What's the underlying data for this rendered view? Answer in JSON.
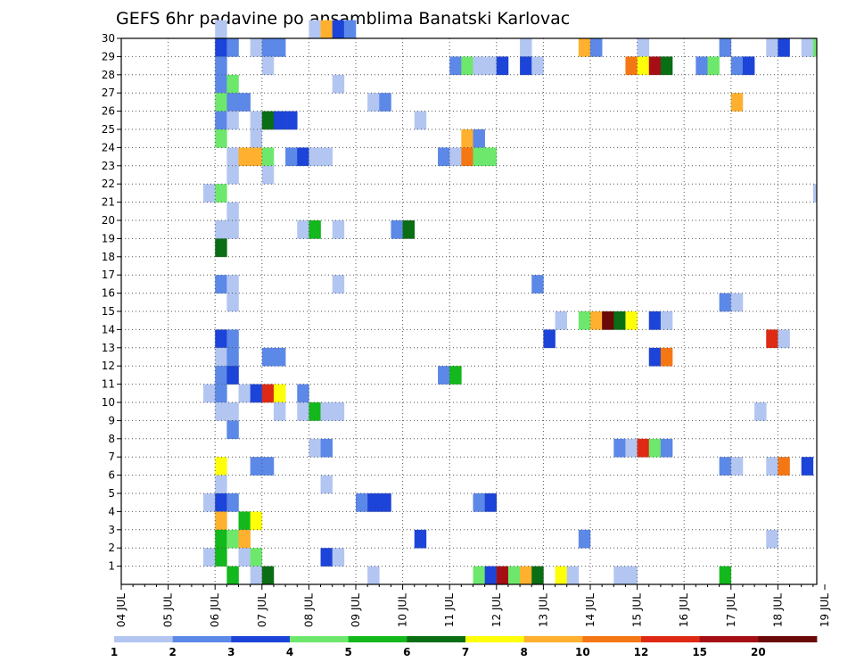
{
  "chart_data": {
    "type": "heatmap",
    "title": "GEFS 6hr padavine po ansamblima Banatski Karlovac",
    "x_tick_labels": [
      "04 JUL",
      "05 JUL",
      "06 JUL",
      "07 JUL",
      "08 JUL",
      "09 JUL",
      "10 JUL",
      "11 JUL",
      "12 JUL",
      "13 JUL",
      "14 JUL",
      "15 JUL",
      "16 JUL",
      "17 JUL",
      "18 JUL",
      "19 JUL"
    ],
    "y_tick_labels": [
      "1",
      "2",
      "3",
      "4",
      "5",
      "6",
      "7",
      "8",
      "9",
      "10",
      "11",
      "12",
      "13",
      "14",
      "15",
      "16",
      "17",
      "18",
      "19",
      "20",
      "21",
      "22",
      "23",
      "24",
      "25",
      "26",
      "27",
      "28",
      "29",
      "30"
    ],
    "x_slots_per_day": 4,
    "y_rows": [
      0,
      30
    ],
    "grid": true,
    "legend": {
      "position": "bottom",
      "labels": [
        "1",
        "2",
        "3",
        "4",
        "5",
        "6",
        "7",
        "8",
        "10",
        "12",
        "15",
        "20"
      ],
      "colors": [
        "#b3c6f2",
        "#5c88e8",
        "#1d44d8",
        "#6de86d",
        "#13b81c",
        "#0a6e14",
        "#ffff0a",
        "#ffb02e",
        "#f57714",
        "#de2a14",
        "#a50e14",
        "#6b0808"
      ]
    },
    "cells": [
      {
        "m": 30,
        "t": "06 JUL 00",
        "v": 1
      },
      {
        "m": 30,
        "t": "08 JUL 00",
        "v": 1
      },
      {
        "m": 30,
        "t": "08 JUL 06",
        "v": 8
      },
      {
        "m": 30,
        "t": "08 JUL 12",
        "v": 3
      },
      {
        "m": 30,
        "t": "08 JUL 18",
        "v": 2
      },
      {
        "m": 29,
        "t": "06 JUL 00",
        "v": 3
      },
      {
        "m": 29,
        "t": "06 JUL 06",
        "v": 2
      },
      {
        "m": 29,
        "t": "06 JUL 18",
        "v": 1
      },
      {
        "m": 29,
        "t": "07 JUL 00",
        "v": 2
      },
      {
        "m": 29,
        "t": "07 JUL 06",
        "v": 2
      },
      {
        "m": 29,
        "t": "12 JUL 12",
        "v": 1
      },
      {
        "m": 29,
        "t": "13 JUL 18",
        "v": 8
      },
      {
        "m": 29,
        "t": "14 JUL 00",
        "v": 2
      },
      {
        "m": 29,
        "t": "15 JUL 00",
        "v": 1
      },
      {
        "m": 29,
        "t": "16 JUL 18",
        "v": 2
      },
      {
        "m": 29,
        "t": "17 JUL 18",
        "v": 1
      },
      {
        "m": 29,
        "t": "18 JUL 00",
        "v": 3
      },
      {
        "m": 29,
        "t": "18 JUL 12",
        "v": 1
      },
      {
        "m": 29,
        "t": "18 JUL 18",
        "v": 4
      },
      {
        "m": 29,
        "t": "19 JUL 00",
        "v": 1
      },
      {
        "m": 28,
        "t": "06 JUL 00",
        "v": 2
      },
      {
        "m": 28,
        "t": "07 JUL 00",
        "v": 1
      },
      {
        "m": 28,
        "t": "11 JUL 00",
        "v": 2
      },
      {
        "m": 28,
        "t": "11 JUL 06",
        "v": 4
      },
      {
        "m": 28,
        "t": "11 JUL 12",
        "v": 1
      },
      {
        "m": 28,
        "t": "11 JUL 18",
        "v": 1
      },
      {
        "m": 28,
        "t": "12 JUL 00",
        "v": 3
      },
      {
        "m": 28,
        "t": "12 JUL 12",
        "v": 3
      },
      {
        "m": 28,
        "t": "12 JUL 18",
        "v": 1
      },
      {
        "m": 28,
        "t": "14 JUL 18",
        "v": 10
      },
      {
        "m": 28,
        "t": "15 JUL 00",
        "v": 7
      },
      {
        "m": 28,
        "t": "15 JUL 06",
        "v": 15
      },
      {
        "m": 28,
        "t": "15 JUL 12",
        "v": 6
      },
      {
        "m": 28,
        "t": "16 JUL 06",
        "v": 2
      },
      {
        "m": 28,
        "t": "16 JUL 12",
        "v": 4
      },
      {
        "m": 28,
        "t": "17 JUL 00",
        "v": 2
      },
      {
        "m": 28,
        "t": "17 JUL 06",
        "v": 3
      },
      {
        "m": 27,
        "t": "06 JUL 00",
        "v": 2
      },
      {
        "m": 27,
        "t": "06 JUL 06",
        "v": 4
      },
      {
        "m": 27,
        "t": "08 JUL 12",
        "v": 1
      },
      {
        "m": 26,
        "t": "06 JUL 00",
        "v": 4
      },
      {
        "m": 26,
        "t": "06 JUL 06",
        "v": 2
      },
      {
        "m": 26,
        "t": "06 JUL 12",
        "v": 2
      },
      {
        "m": 26,
        "t": "09 JUL 06",
        "v": 1
      },
      {
        "m": 26,
        "t": "09 JUL 12",
        "v": 2
      },
      {
        "m": 26,
        "t": "17 JUL 00",
        "v": 8
      },
      {
        "m": 25,
        "t": "06 JUL 00",
        "v": 2
      },
      {
        "m": 25,
        "t": "06 JUL 06",
        "v": 1
      },
      {
        "m": 25,
        "t": "06 JUL 18",
        "v": 1
      },
      {
        "m": 25,
        "t": "07 JUL 00",
        "v": 6
      },
      {
        "m": 25,
        "t": "07 JUL 06",
        "v": 3
      },
      {
        "m": 25,
        "t": "07 JUL 12",
        "v": 3
      },
      {
        "m": 25,
        "t": "10 JUL 06",
        "v": 1
      },
      {
        "m": 24,
        "t": "06 JUL 00",
        "v": 4
      },
      {
        "m": 24,
        "t": "06 JUL 18",
        "v": 1
      },
      {
        "m": 24,
        "t": "11 JUL 06",
        "v": 8
      },
      {
        "m": 24,
        "t": "11 JUL 12",
        "v": 2
      },
      {
        "m": 23,
        "t": "06 JUL 06",
        "v": 1
      },
      {
        "m": 23,
        "t": "06 JUL 12",
        "v": 8
      },
      {
        "m": 23,
        "t": "06 JUL 18",
        "v": 8
      },
      {
        "m": 23,
        "t": "07 JUL 00",
        "v": 4
      },
      {
        "m": 23,
        "t": "07 JUL 12",
        "v": 2
      },
      {
        "m": 23,
        "t": "07 JUL 18",
        "v": 3
      },
      {
        "m": 23,
        "t": "08 JUL 00",
        "v": 1
      },
      {
        "m": 23,
        "t": "08 JUL 06",
        "v": 1
      },
      {
        "m": 23,
        "t": "10 JUL 18",
        "v": 2
      },
      {
        "m": 23,
        "t": "11 JUL 00",
        "v": 1
      },
      {
        "m": 23,
        "t": "11 JUL 06",
        "v": 10
      },
      {
        "m": 23,
        "t": "11 JUL 12",
        "v": 4
      },
      {
        "m": 23,
        "t": "11 JUL 18",
        "v": 4
      },
      {
        "m": 22,
        "t": "06 JUL 06",
        "v": 1
      },
      {
        "m": 22,
        "t": "07 JUL 00",
        "v": 1
      },
      {
        "m": 21,
        "t": "05 JUL 18",
        "v": 1
      },
      {
        "m": 21,
        "t": "06 JUL 00",
        "v": 4
      },
      {
        "m": 21,
        "t": "18 JUL 18",
        "v": 1
      },
      {
        "m": 21,
        "t": "19 JUL 00",
        "v": 4
      },
      {
        "m": 20,
        "t": "06 JUL 06",
        "v": 1
      },
      {
        "m": 19,
        "t": "06 JUL 00",
        "v": 1
      },
      {
        "m": 19,
        "t": "06 JUL 06",
        "v": 1
      },
      {
        "m": 19,
        "t": "07 JUL 18",
        "v": 1
      },
      {
        "m": 19,
        "t": "08 JUL 00",
        "v": 5
      },
      {
        "m": 19,
        "t": "08 JUL 12",
        "v": 1
      },
      {
        "m": 19,
        "t": "09 JUL 18",
        "v": 2
      },
      {
        "m": 19,
        "t": "10 JUL 00",
        "v": 6
      },
      {
        "m": 18,
        "t": "06 JUL 00",
        "v": 6
      },
      {
        "m": 16,
        "t": "06 JUL 00",
        "v": 2
      },
      {
        "m": 16,
        "t": "06 JUL 06",
        "v": 1
      },
      {
        "m": 16,
        "t": "08 JUL 12",
        "v": 1
      },
      {
        "m": 16,
        "t": "12 JUL 18",
        "v": 2
      },
      {
        "m": 15,
        "t": "06 JUL 06",
        "v": 1
      },
      {
        "m": 15,
        "t": "16 JUL 18",
        "v": 2
      },
      {
        "m": 15,
        "t": "17 JUL 00",
        "v": 1
      },
      {
        "m": 14,
        "t": "13 JUL 06",
        "v": 1
      },
      {
        "m": 14,
        "t": "13 JUL 18",
        "v": 4
      },
      {
        "m": 14,
        "t": "14 JUL 00",
        "v": 8
      },
      {
        "m": 14,
        "t": "14 JUL 06",
        "v": 20
      },
      {
        "m": 14,
        "t": "14 JUL 12",
        "v": 6
      },
      {
        "m": 14,
        "t": "14 JUL 18",
        "v": 7
      },
      {
        "m": 14,
        "t": "15 JUL 06",
        "v": 3
      },
      {
        "m": 14,
        "t": "15 JUL 12",
        "v": 1
      },
      {
        "m": 13,
        "t": "06 JUL 00",
        "v": 3
      },
      {
        "m": 13,
        "t": "06 JUL 06",
        "v": 2
      },
      {
        "m": 13,
        "t": "13 JUL 00",
        "v": 3
      },
      {
        "m": 13,
        "t": "17 JUL 18",
        "v": 12
      },
      {
        "m": 13,
        "t": "18 JUL 00",
        "v": 1
      },
      {
        "m": 12,
        "t": "06 JUL 00",
        "v": 1
      },
      {
        "m": 12,
        "t": "06 JUL 06",
        "v": 2
      },
      {
        "m": 12,
        "t": "07 JUL 00",
        "v": 2
      },
      {
        "m": 12,
        "t": "07 JUL 06",
        "v": 2
      },
      {
        "m": 12,
        "t": "15 JUL 06",
        "v": 3
      },
      {
        "m": 12,
        "t": "15 JUL 12",
        "v": 10
      },
      {
        "m": 11,
        "t": "06 JUL 00",
        "v": 2
      },
      {
        "m": 11,
        "t": "06 JUL 06",
        "v": 3
      },
      {
        "m": 11,
        "t": "10 JUL 18",
        "v": 2
      },
      {
        "m": 11,
        "t": "11 JUL 00",
        "v": 5
      },
      {
        "m": 10,
        "t": "05 JUL 18",
        "v": 1
      },
      {
        "m": 10,
        "t": "06 JUL 00",
        "v": 2
      },
      {
        "m": 10,
        "t": "06 JUL 12",
        "v": 1
      },
      {
        "m": 10,
        "t": "06 JUL 18",
        "v": 3
      },
      {
        "m": 10,
        "t": "07 JUL 00",
        "v": 12
      },
      {
        "m": 10,
        "t": "07 JUL 06",
        "v": 7
      },
      {
        "m": 10,
        "t": "07 JUL 18",
        "v": 2
      },
      {
        "m": 9,
        "t": "06 JUL 00",
        "v": 1
      },
      {
        "m": 9,
        "t": "06 JUL 06",
        "v": 1
      },
      {
        "m": 9,
        "t": "07 JUL 06",
        "v": 1
      },
      {
        "m": 9,
        "t": "07 JUL 18",
        "v": 1
      },
      {
        "m": 9,
        "t": "08 JUL 00",
        "v": 5
      },
      {
        "m": 9,
        "t": "08 JUL 06",
        "v": 1
      },
      {
        "m": 9,
        "t": "08 JUL 12",
        "v": 1
      },
      {
        "m": 9,
        "t": "17 JUL 12",
        "v": 1
      },
      {
        "m": 8,
        "t": "06 JUL 06",
        "v": 2
      },
      {
        "m": 8,
        "t": "19 JUL 00",
        "v": 1
      },
      {
        "m": 7,
        "t": "08 JUL 00",
        "v": 1
      },
      {
        "m": 7,
        "t": "08 JUL 06",
        "v": 2
      },
      {
        "m": 7,
        "t": "14 JUL 12",
        "v": 2
      },
      {
        "m": 7,
        "t": "14 JUL 18",
        "v": 1
      },
      {
        "m": 7,
        "t": "15 JUL 00",
        "v": 12
      },
      {
        "m": 7,
        "t": "15 JUL 06",
        "v": 4
      },
      {
        "m": 7,
        "t": "15 JUL 12",
        "v": 2
      },
      {
        "m": 6,
        "t": "06 JUL 00",
        "v": 7
      },
      {
        "m": 6,
        "t": "06 JUL 18",
        "v": 2
      },
      {
        "m": 6,
        "t": "07 JUL 00",
        "v": 2
      },
      {
        "m": 6,
        "t": "16 JUL 18",
        "v": 2
      },
      {
        "m": 6,
        "t": "17 JUL 00",
        "v": 1
      },
      {
        "m": 6,
        "t": "17 JUL 18",
        "v": 1
      },
      {
        "m": 6,
        "t": "18 JUL 00",
        "v": 10
      },
      {
        "m": 6,
        "t": "18 JUL 12",
        "v": 3
      },
      {
        "m": 6,
        "t": "19 JUL 00",
        "v": 4
      },
      {
        "m": 5,
        "t": "06 JUL 00",
        "v": 1
      },
      {
        "m": 5,
        "t": "08 JUL 06",
        "v": 1
      },
      {
        "m": 4,
        "t": "05 JUL 18",
        "v": 1
      },
      {
        "m": 4,
        "t": "06 JUL 00",
        "v": 3
      },
      {
        "m": 4,
        "t": "06 JUL 06",
        "v": 2
      },
      {
        "m": 4,
        "t": "09 JUL 00",
        "v": 2
      },
      {
        "m": 4,
        "t": "09 JUL 06",
        "v": 3
      },
      {
        "m": 4,
        "t": "09 JUL 12",
        "v": 3
      },
      {
        "m": 4,
        "t": "11 JUL 12",
        "v": 2
      },
      {
        "m": 4,
        "t": "11 JUL 18",
        "v": 3
      },
      {
        "m": 3,
        "t": "06 JUL 00",
        "v": 8
      },
      {
        "m": 3,
        "t": "06 JUL 12",
        "v": 5
      },
      {
        "m": 3,
        "t": "06 JUL 18",
        "v": 7
      },
      {
        "m": 2,
        "t": "06 JUL 00",
        "v": 5
      },
      {
        "m": 2,
        "t": "06 JUL 06",
        "v": 4
      },
      {
        "m": 2,
        "t": "06 JUL 12",
        "v": 8
      },
      {
        "m": 2,
        "t": "10 JUL 06",
        "v": 3
      },
      {
        "m": 2,
        "t": "13 JUL 18",
        "v": 2
      },
      {
        "m": 2,
        "t": "17 JUL 18",
        "v": 1
      },
      {
        "m": 1,
        "t": "05 JUL 18",
        "v": 1
      },
      {
        "m": 1,
        "t": "06 JUL 00",
        "v": 5
      },
      {
        "m": 1,
        "t": "06 JUL 12",
        "v": 1
      },
      {
        "m": 1,
        "t": "06 JUL 18",
        "v": 4
      },
      {
        "m": 1,
        "t": "08 JUL 06",
        "v": 3
      },
      {
        "m": 1,
        "t": "08 JUL 12",
        "v": 1
      },
      {
        "m": 0,
        "t": "06 JUL 06",
        "v": 5
      },
      {
        "m": 0,
        "t": "06 JUL 18",
        "v": 1
      },
      {
        "m": 0,
        "t": "07 JUL 00",
        "v": 6
      },
      {
        "m": 0,
        "t": "09 JUL 06",
        "v": 1
      },
      {
        "m": 0,
        "t": "11 JUL 12",
        "v": 4
      },
      {
        "m": 0,
        "t": "11 JUL 18",
        "v": 3
      },
      {
        "m": 0,
        "t": "12 JUL 00",
        "v": 15
      },
      {
        "m": 0,
        "t": "12 JUL 06",
        "v": 4
      },
      {
        "m": 0,
        "t": "12 JUL 12",
        "v": 8
      },
      {
        "m": 0,
        "t": "12 JUL 18",
        "v": 6
      },
      {
        "m": 0,
        "t": "13 JUL 06",
        "v": 7
      },
      {
        "m": 0,
        "t": "13 JUL 12",
        "v": 1
      },
      {
        "m": 0,
        "t": "14 JUL 12",
        "v": 1
      },
      {
        "m": 0,
        "t": "14 JUL 18",
        "v": 1
      },
      {
        "m": 0,
        "t": "16 JUL 18",
        "v": 5
      }
    ]
  }
}
